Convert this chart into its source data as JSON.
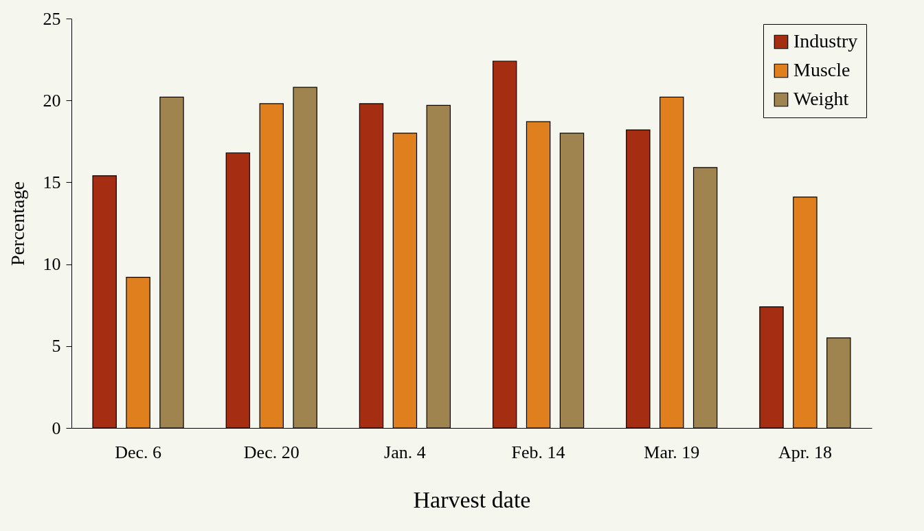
{
  "chart_data": {
    "type": "bar",
    "xlabel": "Harvest date",
    "ylabel": "Percentage",
    "categories": [
      "Dec. 6",
      "Dec. 20",
      "Jan. 4",
      "Feb. 14",
      "Mar. 19",
      "Apr. 18"
    ],
    "series": [
      {
        "name": "Industry",
        "color": "#a52e12",
        "values": [
          15.4,
          16.8,
          19.8,
          22.4,
          18.2,
          7.4
        ]
      },
      {
        "name": "Muscle",
        "color": "#e07f1e",
        "values": [
          9.2,
          19.8,
          18.0,
          18.7,
          20.2,
          14.1
        ]
      },
      {
        "name": "Weight",
        "color": "#a08450",
        "values": [
          20.2,
          20.8,
          19.7,
          18.0,
          15.9,
          5.5
        ]
      }
    ],
    "ylim": [
      0,
      25
    ],
    "yticks": [
      0,
      5,
      10,
      15,
      20,
      25
    ],
    "legend": "top right"
  }
}
